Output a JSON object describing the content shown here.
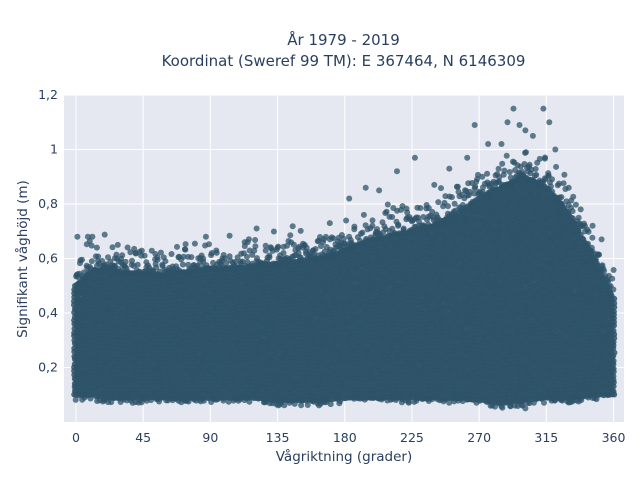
{
  "chart_data": {
    "type": "scatter",
    "title": "År 1979 - 2019",
    "subtitle": "Koordinat (Sweref 99 TM): E 367464, N 6146309",
    "xlabel": "Vågriktning (grader)",
    "ylabel": "Signifikant våghöjd (m)",
    "xlim": [
      -8,
      367
    ],
    "ylim": [
      0,
      1.2
    ],
    "xticks": [
      0,
      45,
      90,
      135,
      180,
      225,
      270,
      315,
      360
    ],
    "xtick_labels": [
      "0",
      "45",
      "90",
      "135",
      "180",
      "225",
      "270",
      "315",
      "360"
    ],
    "yticks": [
      0.2,
      0.4,
      0.6,
      0.8,
      1,
      1.2
    ],
    "ytick_labels": [
      "0,2",
      "0,4",
      "0,6",
      "0,8",
      "1",
      "1,2"
    ],
    "grid": true,
    "marker_color": "#2e5369",
    "background_color": "#e5e8f0",
    "envelope": {
      "x": [
        0,
        10,
        20,
        30,
        45,
        60,
        75,
        90,
        105,
        120,
        135,
        150,
        165,
        180,
        195,
        210,
        225,
        240,
        255,
        270,
        285,
        300,
        315,
        330,
        345,
        360
      ],
      "y_min": [
        0.1,
        0.1,
        0.09,
        0.09,
        0.09,
        0.09,
        0.09,
        0.09,
        0.09,
        0.09,
        0.08,
        0.08,
        0.08,
        0.09,
        0.09,
        0.09,
        0.09,
        0.09,
        0.09,
        0.08,
        0.07,
        0.08,
        0.09,
        0.09,
        0.1,
        0.1
      ],
      "y_max": [
        0.5,
        0.55,
        0.56,
        0.55,
        0.54,
        0.54,
        0.55,
        0.56,
        0.56,
        0.57,
        0.58,
        0.59,
        0.6,
        0.63,
        0.66,
        0.68,
        0.7,
        0.72,
        0.76,
        0.82,
        0.86,
        0.9,
        0.86,
        0.76,
        0.62,
        0.45
      ]
    },
    "outliers": [
      {
        "x": 1,
        "y": 0.68
      },
      {
        "x": 8,
        "y": 0.68
      },
      {
        "x": 11,
        "y": 0.68
      },
      {
        "x": 14,
        "y": 0.64
      },
      {
        "x": 28,
        "y": 0.65
      },
      {
        "x": 40,
        "y": 0.62
      },
      {
        "x": 46,
        "y": 0.61
      },
      {
        "x": 87,
        "y": 0.68
      },
      {
        "x": 113,
        "y": 0.66
      },
      {
        "x": 121,
        "y": 0.71
      },
      {
        "x": 135,
        "y": 0.64
      },
      {
        "x": 152,
        "y": 0.64
      },
      {
        "x": 170,
        "y": 0.73
      },
      {
        "x": 183,
        "y": 0.82
      },
      {
        "x": 194,
        "y": 0.86
      },
      {
        "x": 203,
        "y": 0.85
      },
      {
        "x": 215,
        "y": 0.92
      },
      {
        "x": 227,
        "y": 0.97
      },
      {
        "x": 240,
        "y": 0.87
      },
      {
        "x": 250,
        "y": 0.93
      },
      {
        "x": 262,
        "y": 0.97
      },
      {
        "x": 267,
        "y": 1.09
      },
      {
        "x": 276,
        "y": 1.02
      },
      {
        "x": 285,
        "y": 1.02
      },
      {
        "x": 289,
        "y": 1.1
      },
      {
        "x": 293,
        "y": 1.15
      },
      {
        "x": 297,
        "y": 1.09
      },
      {
        "x": 301,
        "y": 1.07
      },
      {
        "x": 306,
        "y": 1.05
      },
      {
        "x": 313,
        "y": 1.15
      },
      {
        "x": 317,
        "y": 1.1
      },
      {
        "x": 321,
        "y": 1.0
      },
      {
        "x": 330,
        "y": 0.86
      },
      {
        "x": 338,
        "y": 0.78
      },
      {
        "x": 346,
        "y": 0.72
      },
      {
        "x": 352,
        "y": 0.67
      },
      {
        "x": 301,
        "y": 0.05
      },
      {
        "x": 299,
        "y": 0.06
      },
      {
        "x": 38,
        "y": 0.07
      }
    ]
  }
}
